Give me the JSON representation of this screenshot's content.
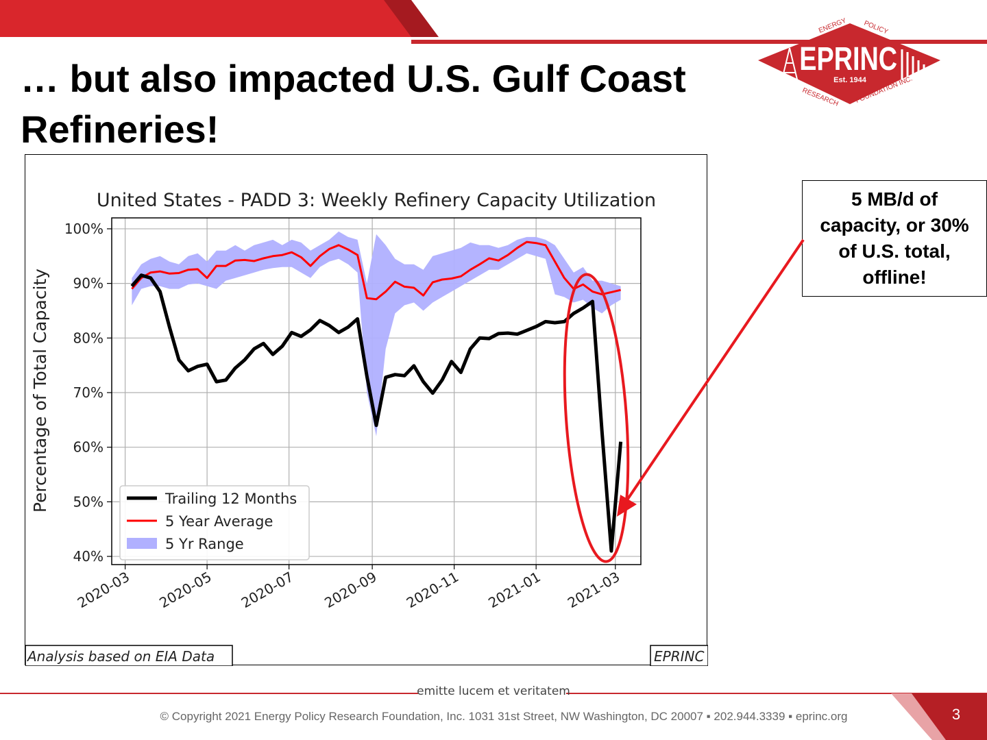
{
  "slide": {
    "title": "… but also impacted U.S. Gulf Coast Refineries!",
    "callout": "5 MB/d of capacity, or 30% of U.S. total, offline!",
    "motto": "emitte lucem et veritatem",
    "copyright": "© Copyright 2021 Energy Policy Research Foundation, Inc. 1031 31st Street, NW Washington, DC 20007 ▪ 202.944.3339 ▪ eprinc.org",
    "page_number": "3"
  },
  "logo": {
    "name": "EPRINC",
    "est": "Est. 1944",
    "arc_top_left": "ENERGY",
    "arc_top_right": "POLICY",
    "arc_bottom_left": "RESEARCH",
    "arc_bottom_right": "FOUNDATION INC."
  },
  "colors": {
    "brand_red": "#c8282e",
    "avg_line": "#ff0000",
    "trailing_line": "#000000",
    "range_fill": "#b0b0ff",
    "annotation_red": "#e8191f"
  },
  "chart_data": {
    "type": "line",
    "title": "United States - PADD 3: Weekly Refinery Capacity Utilization",
    "xlabel": "",
    "ylabel": "Percentage of Total Capacity",
    "ylim": [
      38.5,
      102
    ],
    "xlim": [
      "2020-02-20",
      "2021-03-20"
    ],
    "yticks": [
      40,
      50,
      60,
      70,
      80,
      90,
      100
    ],
    "ytick_labels": [
      "40%",
      "50%",
      "60%",
      "70%",
      "80%",
      "90%",
      "100%"
    ],
    "xticks": [
      "2020-03-01",
      "2020-05-01",
      "2020-07-01",
      "2020-09-01",
      "2020-11-01",
      "2021-01-01",
      "2021-03-01"
    ],
    "xtick_labels": [
      "2020-03",
      "2020-05",
      "2020-07",
      "2020-09",
      "2020-11",
      "2021-01",
      "2021-03"
    ],
    "grid": true,
    "legend": "lower-left",
    "series": [
      {
        "name": "Trailing 12 Months",
        "kind": "line",
        "x": [
          "2020-03-06",
          "2020-03-13",
          "2020-03-20",
          "2020-03-27",
          "2020-04-03",
          "2020-04-10",
          "2020-04-17",
          "2020-04-24",
          "2020-05-01",
          "2020-05-08",
          "2020-05-15",
          "2020-05-22",
          "2020-05-29",
          "2020-06-05",
          "2020-06-12",
          "2020-06-19",
          "2020-06-26",
          "2020-07-03",
          "2020-07-10",
          "2020-07-17",
          "2020-07-24",
          "2020-07-31",
          "2020-08-07",
          "2020-08-14",
          "2020-08-21",
          "2020-08-28",
          "2020-09-04",
          "2020-09-11",
          "2020-09-18",
          "2020-09-25",
          "2020-10-02",
          "2020-10-09",
          "2020-10-16",
          "2020-10-23",
          "2020-10-30",
          "2020-11-06",
          "2020-11-13",
          "2020-11-20",
          "2020-11-27",
          "2020-12-04",
          "2020-12-11",
          "2020-12-18",
          "2020-12-25",
          "2021-01-01",
          "2021-01-08",
          "2021-01-15",
          "2021-01-22",
          "2021-01-29",
          "2021-02-05",
          "2021-02-12",
          "2021-02-19",
          "2021-02-26",
          "2021-03-05"
        ],
        "y": [
          89.5,
          91.5,
          91.0,
          88.5,
          82.0,
          76.0,
          74.0,
          74.8,
          75.2,
          72.0,
          72.3,
          74.5,
          76.0,
          78.0,
          79.0,
          77.0,
          78.5,
          81.0,
          80.3,
          81.5,
          83.2,
          82.3,
          81.0,
          82.0,
          83.5,
          73.0,
          64.0,
          72.8,
          73.3,
          73.1,
          74.9,
          72.0,
          69.9,
          72.3,
          75.7,
          73.7,
          78.0,
          80.0,
          79.9,
          80.8,
          80.9,
          80.7,
          81.4,
          82.1,
          83.0,
          82.8,
          83.0,
          84.5,
          85.5,
          86.7,
          63.0,
          41.0,
          61.0
        ]
      },
      {
        "name": "5 Year Average",
        "kind": "line",
        "x": [
          "2020-03-06",
          "2020-03-13",
          "2020-03-20",
          "2020-03-27",
          "2020-04-03",
          "2020-04-10",
          "2020-04-17",
          "2020-04-24",
          "2020-05-01",
          "2020-05-08",
          "2020-05-15",
          "2020-05-22",
          "2020-05-29",
          "2020-06-05",
          "2020-06-12",
          "2020-06-19",
          "2020-06-26",
          "2020-07-03",
          "2020-07-10",
          "2020-07-17",
          "2020-07-24",
          "2020-07-31",
          "2020-08-07",
          "2020-08-14",
          "2020-08-21",
          "2020-08-28",
          "2020-09-04",
          "2020-09-11",
          "2020-09-18",
          "2020-09-25",
          "2020-10-02",
          "2020-10-09",
          "2020-10-16",
          "2020-10-23",
          "2020-10-30",
          "2020-11-06",
          "2020-11-13",
          "2020-11-20",
          "2020-11-27",
          "2020-12-04",
          "2020-12-11",
          "2020-12-18",
          "2020-12-25",
          "2021-01-01",
          "2021-01-08",
          "2021-01-15",
          "2021-01-22",
          "2021-01-29",
          "2021-02-05",
          "2021-02-12",
          "2021-02-19",
          "2021-02-26",
          "2021-03-05"
        ],
        "y": [
          89.0,
          91.0,
          92.0,
          92.2,
          91.8,
          91.9,
          92.5,
          92.6,
          91.0,
          93.2,
          93.2,
          94.2,
          94.3,
          94.1,
          94.6,
          95.0,
          95.2,
          95.7,
          94.8,
          93.2,
          95.0,
          96.3,
          97.0,
          96.2,
          95.2,
          87.3,
          87.1,
          88.5,
          90.3,
          89.4,
          89.2,
          87.8,
          90.2,
          90.7,
          90.9,
          91.3,
          92.5,
          93.5,
          94.6,
          94.2,
          95.2,
          96.5,
          97.6,
          97.4,
          97.0,
          94.0,
          91.0,
          89.0,
          89.8,
          88.5,
          88.0,
          88.4,
          88.8
        ]
      },
      {
        "name": "5 Yr Range",
        "kind": "range",
        "x": [
          "2020-03-06",
          "2020-03-13",
          "2020-03-20",
          "2020-03-27",
          "2020-04-03",
          "2020-04-10",
          "2020-04-17",
          "2020-04-24",
          "2020-05-01",
          "2020-05-08",
          "2020-05-15",
          "2020-05-22",
          "2020-05-29",
          "2020-06-05",
          "2020-06-12",
          "2020-06-19",
          "2020-06-26",
          "2020-07-03",
          "2020-07-10",
          "2020-07-17",
          "2020-07-24",
          "2020-07-31",
          "2020-08-07",
          "2020-08-14",
          "2020-08-21",
          "2020-08-28",
          "2020-09-04",
          "2020-09-11",
          "2020-09-18",
          "2020-09-25",
          "2020-10-02",
          "2020-10-09",
          "2020-10-16",
          "2020-10-23",
          "2020-10-30",
          "2020-11-06",
          "2020-11-13",
          "2020-11-20",
          "2020-11-27",
          "2020-12-04",
          "2020-12-11",
          "2020-12-18",
          "2020-12-25",
          "2021-01-01",
          "2021-01-08",
          "2021-01-15",
          "2021-01-22",
          "2021-01-29",
          "2021-02-05",
          "2021-02-12",
          "2021-02-19",
          "2021-02-26",
          "2021-03-05"
        ],
        "low": [
          86.0,
          89.0,
          89.5,
          89.5,
          89.0,
          89.0,
          89.8,
          90.0,
          89.5,
          89.0,
          90.5,
          91.0,
          91.5,
          92.0,
          92.5,
          92.8,
          93.0,
          93.0,
          92.0,
          91.0,
          93.0,
          94.0,
          94.5,
          93.5,
          92.0,
          70.0,
          62.0,
          78.0,
          84.5,
          86.0,
          86.5,
          85.0,
          86.5,
          87.5,
          88.5,
          89.5,
          90.5,
          91.5,
          92.5,
          92.5,
          93.5,
          94.5,
          95.5,
          95.0,
          94.5,
          88.0,
          87.5,
          86.5,
          87.0,
          85.5,
          84.5,
          86.0,
          87.0
        ],
        "high": [
          91.0,
          93.5,
          94.5,
          95.0,
          94.0,
          93.5,
          95.0,
          95.5,
          94.0,
          96.0,
          96.0,
          97.0,
          96.0,
          97.0,
          97.5,
          98.0,
          97.0,
          98.0,
          97.5,
          96.0,
          97.0,
          98.0,
          99.5,
          98.5,
          98.0,
          90.0,
          99.0,
          97.0,
          94.5,
          93.5,
          93.5,
          92.5,
          95.0,
          95.5,
          96.0,
          96.5,
          97.5,
          97.0,
          97.0,
          96.5,
          97.0,
          98.0,
          98.5,
          98.5,
          98.0,
          97.0,
          94.5,
          92.0,
          93.0,
          90.5,
          90.5,
          90.0,
          89.5
        ]
      }
    ],
    "footnotes": {
      "left": "Analysis based on EIA Data",
      "right": "EPRINC"
    }
  }
}
